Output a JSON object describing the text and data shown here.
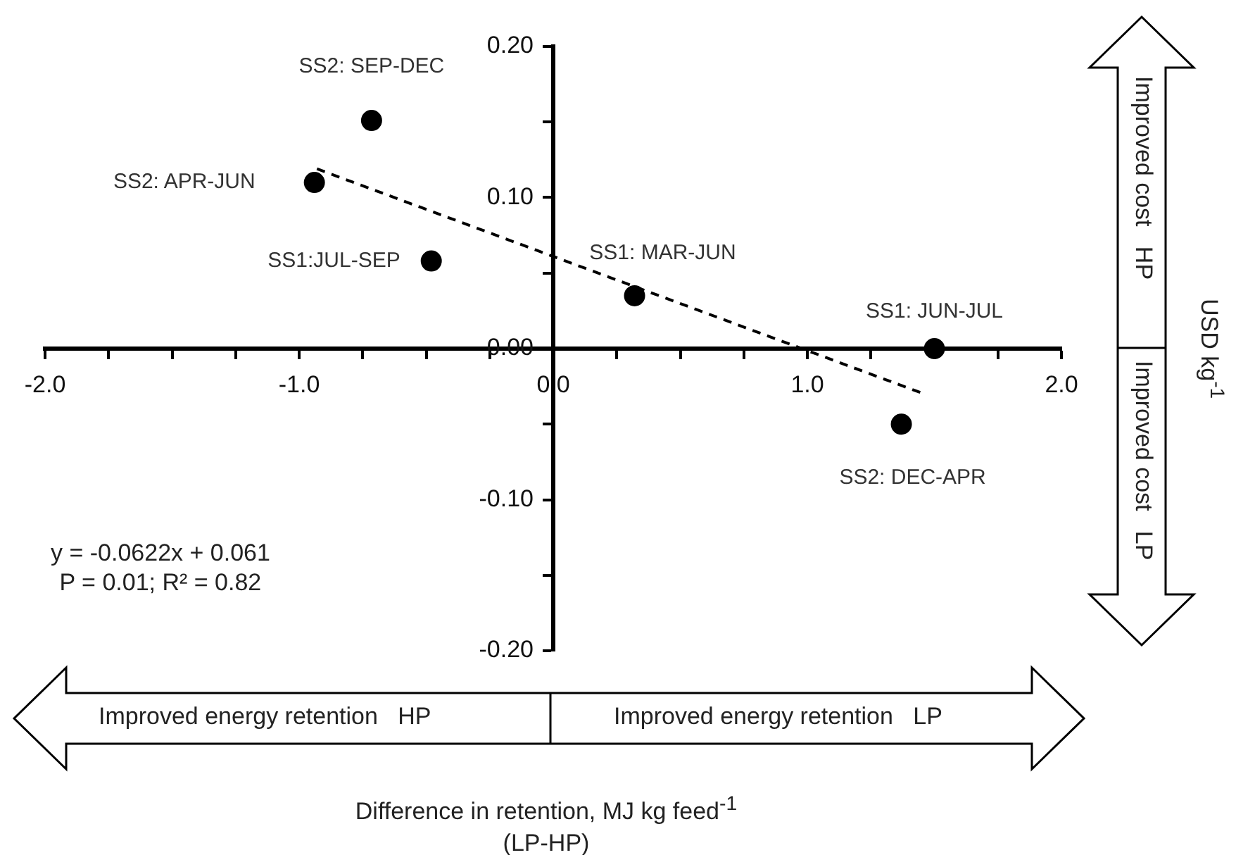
{
  "chart_data": {
    "type": "scatter",
    "xlabel": "Difference in retention, MJ kg feed$^{-1}$\n(LP-HP)",
    "ylabel": "USD kg$^{-1}$",
    "series": [
      {
        "type": "scatter",
        "color": "#000000",
        "x": [
          -0.715,
          -0.94,
          -0.48,
          0.32,
          1.5,
          1.37
        ],
        "values": [
          0.151,
          0.11,
          0.058,
          0.035,
          0.0,
          -0.05
        ],
        "marker": "circle"
      },
      {
        "type": "line",
        "color": "#000000",
        "x": [
          -0.93,
          1.46
        ],
        "values": [
          0.119,
          -0.03
        ],
        "marker": "none",
        "line_style": "dashed"
      }
    ],
    "xlim": [
      -2,
      2
    ],
    "ylim": [
      -0.2,
      0.2
    ],
    "xticks": [
      {
        "value": -2,
        "label": "-2.0"
      },
      {
        "value": -1.75,
        "label": null
      },
      {
        "value": -1.5,
        "label": null
      },
      {
        "value": -1.25,
        "label": null
      },
      {
        "value": -1,
        "label": "-1.0"
      },
      {
        "value": -0.75,
        "label": null
      },
      {
        "value": -0.5,
        "label": null
      },
      {
        "value": -0.25,
        "label": null
      },
      {
        "value": 0,
        "label": "0.0"
      },
      {
        "value": 0.25,
        "label": null
      },
      {
        "value": 0.5,
        "label": null
      },
      {
        "value": 0.75,
        "label": null
      },
      {
        "value": 1,
        "label": "1.0"
      },
      {
        "value": 1.25,
        "label": null
      },
      {
        "value": 1.5,
        "label": null
      },
      {
        "value": 1.75,
        "label": null
      },
      {
        "value": 2,
        "label": "2.0"
      }
    ],
    "yticks": [
      {
        "value": -0.2,
        "label": "-0.20"
      },
      {
        "value": -0.15,
        "label": null
      },
      {
        "value": -0.1,
        "label": "-0.10"
      },
      {
        "value": -0.05,
        "label": null
      },
      {
        "value": 0,
        "label": "0.00"
      },
      {
        "value": 0.05,
        "label": null
      },
      {
        "value": 0.1,
        "label": "0.10"
      },
      {
        "value": 0.15,
        "label": null
      },
      {
        "value": 0.2,
        "label": "0.20"
      }
    ],
    "annotations": [
      {
        "text": "SS2: SEP-DEC",
        "x": -0.715,
        "y": 0.151
      },
      {
        "text": "SS2: APR-JUN",
        "x": -0.94,
        "y": 0.11
      },
      {
        "text": "SS1:JUL-SEP",
        "x": -0.48,
        "y": 0.058
      },
      {
        "text": "SS1: MAR-JUN",
        "x": 0.32,
        "y": 0.035
      },
      {
        "text": "SS1: JUN-JUL",
        "x": 1.5,
        "y": 0.0
      },
      {
        "text": "SS2: DEC-APR",
        "x": 1.37,
        "y": -0.05
      },
      "y = -0.0622x + 0.061\nP = 0.01; R² = 0.82",
      "Improved energy retention   HP",
      "Improved energy retention   LP",
      "Improved cost   HP",
      "Improved cost   LP"
    ],
    "grid": false,
    "legend": false
  }
}
